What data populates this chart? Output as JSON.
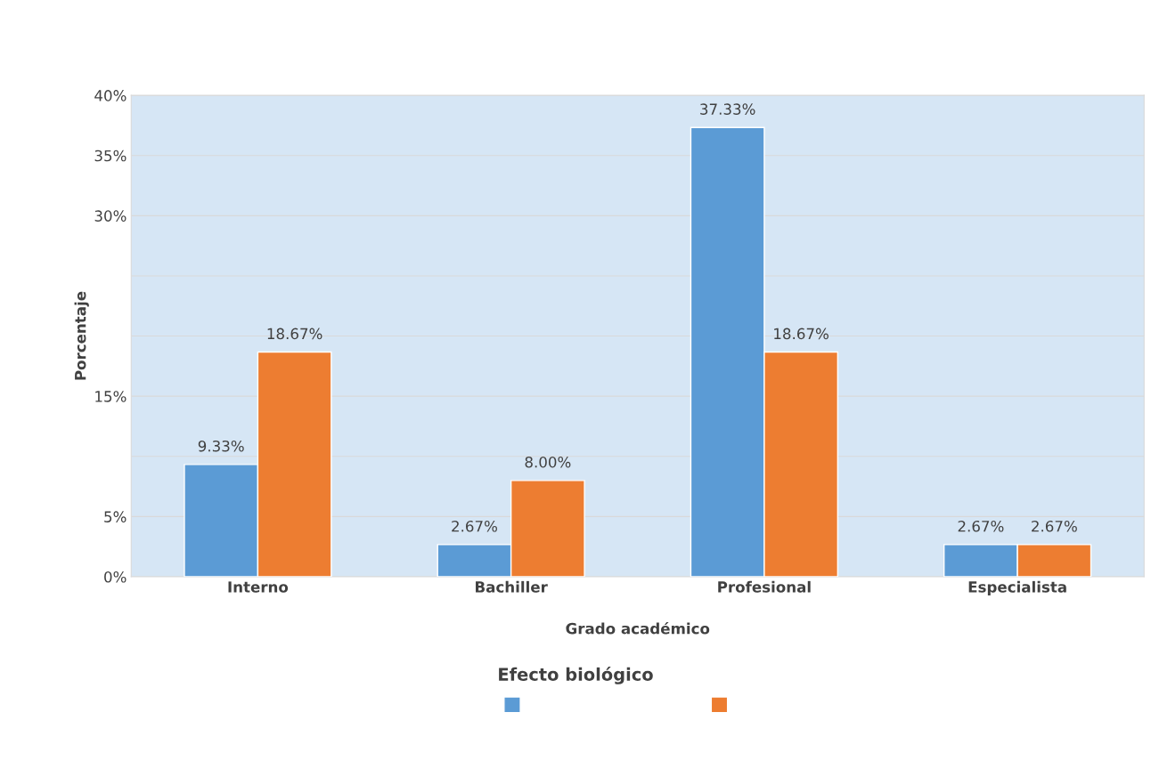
{
  "chart_data": {
    "type": "bar",
    "categories": [
      "Interno",
      "Bachiller",
      "Profesional",
      "Especialista"
    ],
    "series": [
      {
        "color": "#5b9bd5",
        "values": [
          9.33,
          2.67,
          37.33,
          2.67
        ],
        "value_labels": [
          "9.33%",
          "2.67%",
          "37.33%",
          "2.67%"
        ]
      },
      {
        "color": "#ed7d31",
        "values": [
          18.67,
          8.0,
          18.67,
          2.67
        ],
        "value_labels": [
          "18.67%",
          "8.00%",
          "18.67%",
          "2.67%"
        ]
      }
    ],
    "xlabel": "Grado académico",
    "ylabel": "Porcentaje",
    "legend_title": "Efecto biológico",
    "ylim": [
      0,
      40
    ],
    "yticks": [
      {
        "value": 0,
        "label": "0%"
      },
      {
        "value": 5,
        "label": "5%"
      },
      {
        "value": 10,
        "label": null
      },
      {
        "value": 15,
        "label": "15%"
      },
      {
        "value": 20,
        "label": null
      },
      {
        "value": 25,
        "label": null
      },
      {
        "value": 30,
        "label": "30%"
      },
      {
        "value": 35,
        "label": "35%"
      },
      {
        "value": 40,
        "label": "40%"
      }
    ],
    "grid": "y"
  }
}
